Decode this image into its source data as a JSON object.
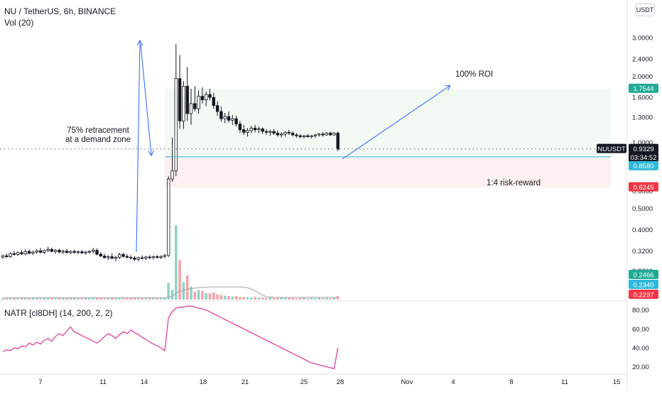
{
  "header": {
    "title": "NU / TetherUS, 6h, BINANCE",
    "volume_label": "Vol (20)",
    "indicator_label": "NATR [cl8DH] (14, 200, 2, 2)",
    "currency_button": "USDT"
  },
  "chart_data": {
    "type": "candlestick",
    "symbol": "NU / TetherUS",
    "timeframe": "6h",
    "exchange": "BINANCE",
    "price_axis": {
      "scale": "log",
      "tick_labels": [
        "3.0000",
        "2.4000",
        "2.0000",
        "1.6000",
        "1.3000",
        "1.0000",
        "0.8000",
        "0.6000",
        "0.5000",
        "0.4000",
        "0.3200",
        "0.2600"
      ],
      "tick_values": [
        3.0,
        2.4,
        2.0,
        1.6,
        1.3,
        1.0,
        0.8,
        0.6,
        0.5,
        0.4,
        0.32,
        0.26
      ]
    },
    "time_axis": {
      "labels": [
        "7",
        "11",
        "14",
        "18",
        "21",
        "25",
        "28",
        "Nov",
        "4",
        "8",
        "11",
        "15"
      ]
    },
    "natr_axis": {
      "tick_labels": [
        "80.00",
        "60.00",
        "40.00",
        "20.00"
      ],
      "tick_values": [
        80,
        60,
        40,
        20
      ]
    },
    "price_tags": [
      {
        "label": "1.7544",
        "value": 1.7544,
        "color": "#22ab94"
      },
      {
        "label": "NUUSDT",
        "value": 0.9329,
        "color": "#131722"
      },
      {
        "label": "0.9329",
        "value": 0.9329,
        "color": "#131722"
      },
      {
        "label": "03:34:52",
        "value": 0.9329,
        "color": "#131722"
      },
      {
        "label": "0.8580",
        "value": 0.858,
        "color": "#2fb8d9"
      },
      {
        "label": "0.6245",
        "value": 0.6245,
        "color": "#f23645"
      },
      {
        "label": "0.2466",
        "value": 0.2466,
        "color": "#22ab94"
      },
      {
        "label": "0.2340",
        "value": 0.234,
        "color": "#2fb8d9"
      },
      {
        "label": "0.2297",
        "value": 0.2297,
        "color": "#f23645"
      }
    ],
    "position": {
      "entry": 0.858,
      "target": 1.7544,
      "stop": 0.6245,
      "last_price": 0.9329
    },
    "annotations": {
      "retracement": [
        "75% retracement",
        "at a demand zone"
      ],
      "roi": "100% ROI",
      "risk_reward": "1:4 risk-reward"
    },
    "candles": [
      {
        "o": 0.3,
        "h": 0.308,
        "l": 0.294,
        "c": 0.304
      },
      {
        "o": 0.304,
        "h": 0.312,
        "l": 0.298,
        "c": 0.301
      },
      {
        "o": 0.301,
        "h": 0.316,
        "l": 0.297,
        "c": 0.311
      },
      {
        "o": 0.311,
        "h": 0.32,
        "l": 0.304,
        "c": 0.308
      },
      {
        "o": 0.308,
        "h": 0.318,
        "l": 0.303,
        "c": 0.314
      },
      {
        "o": 0.314,
        "h": 0.322,
        "l": 0.307,
        "c": 0.31
      },
      {
        "o": 0.31,
        "h": 0.325,
        "l": 0.306,
        "c": 0.318
      },
      {
        "o": 0.318,
        "h": 0.324,
        "l": 0.309,
        "c": 0.312
      },
      {
        "o": 0.312,
        "h": 0.321,
        "l": 0.306,
        "c": 0.316
      },
      {
        "o": 0.316,
        "h": 0.326,
        "l": 0.31,
        "c": 0.32
      },
      {
        "o": 0.32,
        "h": 0.33,
        "l": 0.312,
        "c": 0.315
      },
      {
        "o": 0.315,
        "h": 0.324,
        "l": 0.309,
        "c": 0.321
      },
      {
        "o": 0.321,
        "h": 0.334,
        "l": 0.316,
        "c": 0.325
      },
      {
        "o": 0.325,
        "h": 0.331,
        "l": 0.315,
        "c": 0.318
      },
      {
        "o": 0.318,
        "h": 0.326,
        "l": 0.311,
        "c": 0.322
      },
      {
        "o": 0.322,
        "h": 0.328,
        "l": 0.312,
        "c": 0.316
      },
      {
        "o": 0.316,
        "h": 0.324,
        "l": 0.31,
        "c": 0.319
      },
      {
        "o": 0.319,
        "h": 0.327,
        "l": 0.312,
        "c": 0.314
      },
      {
        "o": 0.314,
        "h": 0.322,
        "l": 0.309,
        "c": 0.318
      },
      {
        "o": 0.318,
        "h": 0.324,
        "l": 0.311,
        "c": 0.315
      },
      {
        "o": 0.315,
        "h": 0.321,
        "l": 0.309,
        "c": 0.317
      },
      {
        "o": 0.317,
        "h": 0.323,
        "l": 0.31,
        "c": 0.313
      },
      {
        "o": 0.313,
        "h": 0.32,
        "l": 0.308,
        "c": 0.316
      },
      {
        "o": 0.316,
        "h": 0.322,
        "l": 0.31,
        "c": 0.318
      },
      {
        "o": 0.318,
        "h": 0.33,
        "l": 0.312,
        "c": 0.322
      },
      {
        "o": 0.322,
        "h": 0.328,
        "l": 0.305,
        "c": 0.309
      },
      {
        "o": 0.309,
        "h": 0.316,
        "l": 0.3,
        "c": 0.303
      },
      {
        "o": 0.303,
        "h": 0.31,
        "l": 0.295,
        "c": 0.298
      },
      {
        "o": 0.298,
        "h": 0.306,
        "l": 0.291,
        "c": 0.301
      },
      {
        "o": 0.301,
        "h": 0.312,
        "l": 0.293,
        "c": 0.296
      },
      {
        "o": 0.296,
        "h": 0.304,
        "l": 0.287,
        "c": 0.299
      },
      {
        "o": 0.299,
        "h": 0.314,
        "l": 0.294,
        "c": 0.308
      },
      {
        "o": 0.308,
        "h": 0.314,
        "l": 0.298,
        "c": 0.302
      },
      {
        "o": 0.302,
        "h": 0.309,
        "l": 0.296,
        "c": 0.299
      },
      {
        "o": 0.299,
        "h": 0.306,
        "l": 0.292,
        "c": 0.297
      },
      {
        "o": 0.297,
        "h": 0.303,
        "l": 0.288,
        "c": 0.293
      },
      {
        "o": 0.293,
        "h": 0.301,
        "l": 0.287,
        "c": 0.298
      },
      {
        "o": 0.298,
        "h": 0.305,
        "l": 0.292,
        "c": 0.296
      },
      {
        "o": 0.296,
        "h": 0.304,
        "l": 0.291,
        "c": 0.3
      },
      {
        "o": 0.3,
        "h": 0.306,
        "l": 0.294,
        "c": 0.298
      },
      {
        "o": 0.298,
        "h": 0.305,
        "l": 0.293,
        "c": 0.301
      },
      {
        "o": 0.301,
        "h": 0.306,
        "l": 0.295,
        "c": 0.299
      },
      {
        "o": 0.299,
        "h": 0.305,
        "l": 0.294,
        "c": 0.302
      },
      {
        "o": 0.302,
        "h": 0.31,
        "l": 0.296,
        "c": 0.305
      },
      {
        "o": 0.305,
        "h": 0.7,
        "l": 0.3,
        "c": 0.68
      },
      {
        "o": 0.68,
        "h": 1.05,
        "l": 0.66,
        "c": 0.74
      },
      {
        "o": 0.74,
        "h": 2.8,
        "l": 0.7,
        "c": 1.95
      },
      {
        "o": 1.95,
        "h": 2.5,
        "l": 1.15,
        "c": 1.25
      },
      {
        "o": 1.25,
        "h": 1.9,
        "l": 1.15,
        "c": 1.8
      },
      {
        "o": 1.8,
        "h": 2.2,
        "l": 1.25,
        "c": 1.35
      },
      {
        "o": 1.35,
        "h": 1.75,
        "l": 1.2,
        "c": 1.5
      },
      {
        "o": 1.5,
        "h": 1.8,
        "l": 1.38,
        "c": 1.42
      },
      {
        "o": 1.42,
        "h": 1.72,
        "l": 1.35,
        "c": 1.62
      },
      {
        "o": 1.62,
        "h": 1.78,
        "l": 1.5,
        "c": 1.56
      },
      {
        "o": 1.56,
        "h": 1.7,
        "l": 1.46,
        "c": 1.65
      },
      {
        "o": 1.65,
        "h": 1.75,
        "l": 1.55,
        "c": 1.6
      },
      {
        "o": 1.6,
        "h": 1.68,
        "l": 1.42,
        "c": 1.47
      },
      {
        "o": 1.47,
        "h": 1.54,
        "l": 1.32,
        "c": 1.38
      },
      {
        "o": 1.38,
        "h": 1.45,
        "l": 1.24,
        "c": 1.28
      },
      {
        "o": 1.28,
        "h": 1.36,
        "l": 1.22,
        "c": 1.31
      },
      {
        "o": 1.31,
        "h": 1.38,
        "l": 1.23,
        "c": 1.26
      },
      {
        "o": 1.26,
        "h": 1.33,
        "l": 1.2,
        "c": 1.28
      },
      {
        "o": 1.28,
        "h": 1.32,
        "l": 1.18,
        "c": 1.21
      },
      {
        "o": 1.21,
        "h": 1.25,
        "l": 1.1,
        "c": 1.14
      },
      {
        "o": 1.14,
        "h": 1.2,
        "l": 1.08,
        "c": 1.11
      },
      {
        "o": 1.11,
        "h": 1.16,
        "l": 1.06,
        "c": 1.13
      },
      {
        "o": 1.13,
        "h": 1.19,
        "l": 1.1,
        "c": 1.16
      },
      {
        "o": 1.16,
        "h": 1.2,
        "l": 1.11,
        "c": 1.14
      },
      {
        "o": 1.14,
        "h": 1.18,
        "l": 1.1,
        "c": 1.15
      },
      {
        "o": 1.15,
        "h": 1.17,
        "l": 1.09,
        "c": 1.12
      },
      {
        "o": 1.12,
        "h": 1.15,
        "l": 1.08,
        "c": 1.11
      },
      {
        "o": 1.11,
        "h": 1.14,
        "l": 1.07,
        "c": 1.12
      },
      {
        "o": 1.12,
        "h": 1.15,
        "l": 1.08,
        "c": 1.1
      },
      {
        "o": 1.1,
        "h": 1.13,
        "l": 1.06,
        "c": 1.08
      },
      {
        "o": 1.08,
        "h": 1.11,
        "l": 1.05,
        "c": 1.09
      },
      {
        "o": 1.09,
        "h": 1.12,
        "l": 1.06,
        "c": 1.11
      },
      {
        "o": 1.11,
        "h": 1.14,
        "l": 1.08,
        "c": 1.1
      },
      {
        "o": 1.1,
        "h": 1.12,
        "l": 1.06,
        "c": 1.08
      },
      {
        "o": 1.08,
        "h": 1.1,
        "l": 1.05,
        "c": 1.07
      },
      {
        "o": 1.07,
        "h": 1.09,
        "l": 1.04,
        "c": 1.06
      },
      {
        "o": 1.06,
        "h": 1.08,
        "l": 1.04,
        "c": 1.07
      },
      {
        "o": 1.07,
        "h": 1.09,
        "l": 1.05,
        "c": 1.06
      },
      {
        "o": 1.06,
        "h": 1.08,
        "l": 1.04,
        "c": 1.07
      },
      {
        "o": 1.07,
        "h": 1.09,
        "l": 1.05,
        "c": 1.08
      },
      {
        "o": 1.08,
        "h": 1.1,
        "l": 1.06,
        "c": 1.09
      },
      {
        "o": 1.09,
        "h": 1.11,
        "l": 1.06,
        "c": 1.08
      },
      {
        "o": 1.08,
        "h": 1.11,
        "l": 1.07,
        "c": 1.1
      },
      {
        "o": 1.1,
        "h": 1.12,
        "l": 1.07,
        "c": 1.08
      },
      {
        "o": 1.08,
        "h": 1.11,
        "l": 1.07,
        "c": 1.1
      },
      {
        "o": 1.1,
        "h": 1.12,
        "l": 0.91,
        "c": 0.93
      }
    ],
    "volume": [
      3,
      3,
      4,
      3,
      3,
      4,
      3,
      3,
      4,
      3,
      3,
      4,
      3,
      3,
      3,
      4,
      3,
      3,
      4,
      3,
      3,
      3,
      4,
      3,
      4,
      5,
      4,
      3,
      3,
      4,
      3,
      4,
      3,
      3,
      3,
      4,
      3,
      3,
      3,
      3,
      3,
      4,
      3,
      4,
      38,
      22,
      170,
      90,
      40,
      55,
      30,
      18,
      22,
      20,
      15,
      14,
      16,
      12,
      10,
      9,
      8,
      7,
      8,
      6,
      6,
      5,
      5,
      6,
      5,
      5,
      4,
      5,
      4,
      4,
      5,
      4,
      4,
      4,
      3,
      4,
      4,
      3,
      4,
      3,
      4,
      3,
      4,
      3,
      4,
      8
    ],
    "volume_ma": [
      4,
      4,
      4,
      4,
      4,
      4,
      4,
      4,
      4,
      4,
      4,
      4,
      4,
      4,
      4,
      4,
      4,
      4,
      4,
      4,
      4,
      4,
      4,
      4,
      4,
      4,
      4,
      4,
      4,
      4,
      4,
      4,
      4,
      4,
      4,
      4,
      4,
      4,
      4,
      4,
      4,
      4,
      4,
      4,
      6,
      7,
      15,
      19,
      21,
      24,
      25,
      26,
      27,
      28,
      28,
      29,
      29,
      29,
      29,
      29,
      29,
      29,
      29,
      29,
      28,
      27,
      24,
      20,
      15,
      10,
      7,
      6,
      5,
      5,
      5,
      5,
      5,
      5,
      5,
      5,
      5,
      5,
      5,
      5,
      5,
      5,
      5,
      5,
      5,
      5
    ],
    "natr": [
      36,
      38,
      37,
      40,
      39,
      42,
      41,
      45,
      43,
      46,
      44,
      48,
      50,
      47,
      52,
      55,
      53,
      58,
      62,
      57,
      55,
      53,
      51,
      49,
      47,
      45,
      48,
      52,
      55,
      53,
      50,
      54,
      57,
      55,
      59,
      56,
      54,
      51,
      49,
      46,
      44,
      42,
      40,
      37,
      72,
      78,
      82,
      83,
      83,
      84,
      84,
      83,
      82,
      81,
      80,
      78,
      76,
      74,
      72,
      70,
      68,
      66,
      64,
      62,
      60,
      58,
      56,
      54,
      52,
      50,
      48,
      46,
      44,
      42,
      40,
      38,
      36,
      34,
      32,
      30,
      28,
      26,
      24,
      23,
      22,
      21,
      20,
      19,
      18,
      40
    ]
  }
}
